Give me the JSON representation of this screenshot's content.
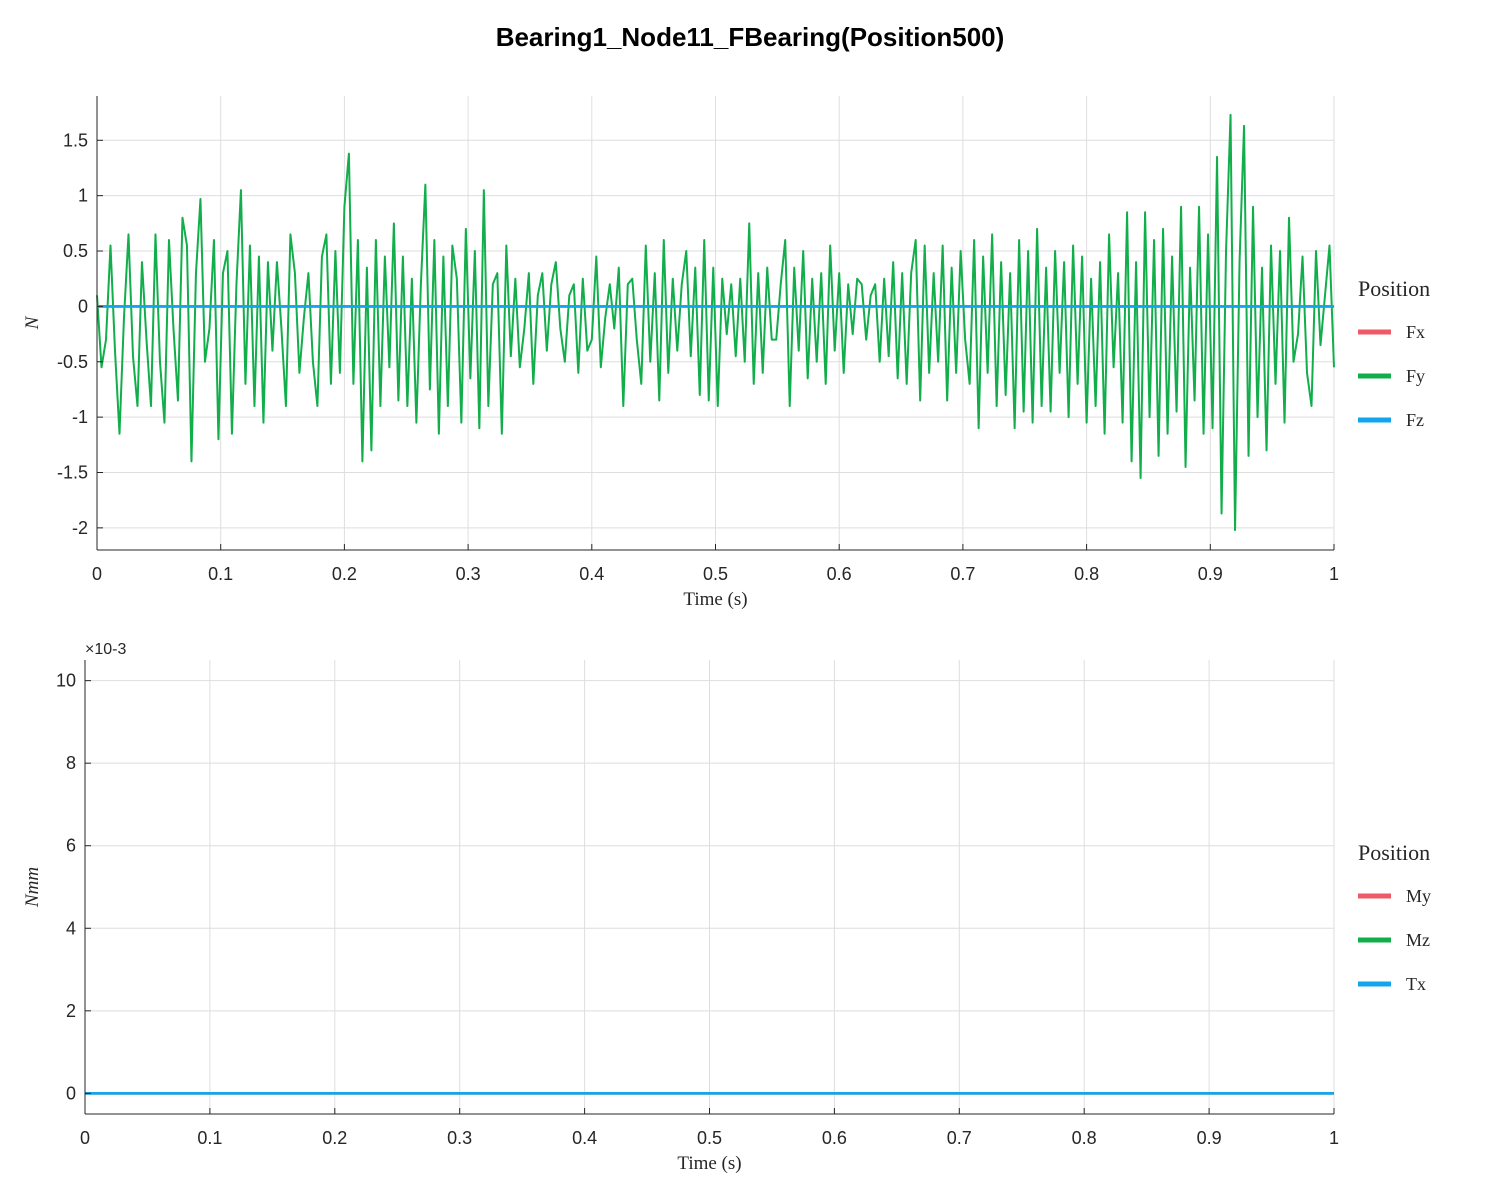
{
  "figure": {
    "title": "Bearing1_Node11_FBearing(Position500)"
  },
  "colors": {
    "series1": "#EE5A66",
    "series2": "#11AE4B",
    "series3": "#12A5EC",
    "grid": "#DEDEDE",
    "axis": "#262626"
  },
  "chart_data": [
    {
      "type": "line",
      "xlabel": "Time (s)",
      "ylabel": "N",
      "xlim": [
        0,
        1
      ],
      "ylim": [
        -2.2,
        1.9
      ],
      "xticks": [
        0,
        0.1,
        0.2,
        0.3,
        0.4,
        0.5,
        0.6,
        0.7,
        0.8,
        0.9,
        1
      ],
      "xtick_labels": [
        "0",
        "0.1",
        "0.2",
        "0.3",
        "0.4",
        "0.5",
        "0.6",
        "0.7",
        "0.8",
        "0.9",
        "1"
      ],
      "yticks": [
        -2,
        -1.5,
        -1,
        -0.5,
        0,
        0.5,
        1,
        1.5
      ],
      "ytick_labels": [
        "-2",
        "-1.5",
        "-1",
        "-0.5",
        "0",
        "0.5",
        "1",
        "1.5"
      ],
      "grid": true,
      "legend_title": "Position",
      "legend_placement": "right",
      "series": [
        {
          "name": "Fx",
          "color": "#EE5A66",
          "kind": "constant",
          "value": 0
        },
        {
          "name": "Fy",
          "color": "#11AE4B",
          "kind": "samples",
          "x_start": 0,
          "x_end": 1,
          "values": [
            0.1,
            -0.55,
            -0.3,
            0.55,
            -0.4,
            -1.15,
            -0.1,
            0.65,
            -0.45,
            -0.9,
            0.4,
            -0.3,
            -0.9,
            0.65,
            -0.5,
            -1.05,
            0.6,
            -0.2,
            -0.85,
            0.8,
            0.55,
            -1.4,
            0.3,
            0.97,
            -0.5,
            -0.2,
            0.6,
            -1.2,
            0.3,
            0.5,
            -1.15,
            0.2,
            1.05,
            -0.7,
            0.55,
            -0.9,
            0.45,
            -1.05,
            0.4,
            -0.4,
            0.4,
            -0.2,
            -0.9,
            0.65,
            0.3,
            -0.6,
            -0.1,
            0.3,
            -0.5,
            -0.9,
            0.45,
            0.65,
            -0.7,
            0.5,
            -0.6,
            0.9,
            1.38,
            -0.7,
            0.6,
            -1.4,
            0.35,
            -1.3,
            0.6,
            -0.9,
            0.45,
            -0.55,
            0.75,
            -0.85,
            0.45,
            -0.9,
            0.25,
            -1.05,
            0.2,
            1.1,
            -0.75,
            0.6,
            -1.15,
            0.45,
            -0.9,
            0.55,
            0.25,
            -1.05,
            0.7,
            -0.65,
            0.5,
            -1.1,
            1.05,
            -0.9,
            0.2,
            0.3,
            -1.15,
            0.55,
            -0.45,
            0.25,
            -0.55,
            -0.2,
            0.3,
            -0.7,
            0.1,
            0.3,
            -0.4,
            0.2,
            0.4,
            -0.2,
            -0.5,
            0.1,
            0.2,
            -0.6,
            0.25,
            -0.4,
            -0.3,
            0.45,
            -0.55,
            -0.1,
            0.2,
            -0.2,
            0.35,
            -0.9,
            0.2,
            0.25,
            -0.3,
            -0.7,
            0.55,
            -0.5,
            0.3,
            -0.85,
            0.6,
            -0.6,
            0.25,
            -0.4,
            0.2,
            0.5,
            -0.45,
            0.35,
            -0.8,
            0.6,
            -0.85,
            0.35,
            -0.9,
            0.25,
            -0.25,
            0.2,
            -0.45,
            0.25,
            -0.5,
            0.75,
            -0.7,
            0.3,
            -0.6,
            0.35,
            -0.3,
            -0.3,
            0.2,
            0.6,
            -0.9,
            0.35,
            -0.4,
            0.5,
            -0.65,
            0.25,
            -0.5,
            0.3,
            -0.7,
            0.55,
            -0.4,
            0.3,
            -0.6,
            0.2,
            -0.25,
            0.25,
            0.2,
            -0.3,
            0.1,
            0.2,
            -0.5,
            0.25,
            -0.45,
            0.4,
            -0.65,
            0.3,
            -0.7,
            0.3,
            0.6,
            -0.85,
            0.55,
            -0.6,
            0.3,
            -0.5,
            0.55,
            -0.85,
            0.35,
            -0.6,
            0.5,
            -0.3,
            -0.7,
            0.6,
            -1.1,
            0.45,
            -0.6,
            0.65,
            -0.9,
            0.4,
            -0.8,
            0.3,
            -1.1,
            0.6,
            -0.95,
            0.5,
            -1.05,
            0.7,
            -0.9,
            0.35,
            -0.95,
            0.5,
            -0.6,
            0.4,
            -1.0,
            0.55,
            -0.7,
            0.45,
            -1.05,
            0.25,
            -0.9,
            0.4,
            -1.15,
            0.65,
            -0.55,
            0.3,
            -1.05,
            0.85,
            -1.4,
            0.4,
            -1.55,
            0.85,
            -1.0,
            0.6,
            -1.35,
            0.7,
            -1.15,
            0.45,
            -0.95,
            0.9,
            -1.45,
            0.35,
            -0.85,
            0.9,
            -1.15,
            0.65,
            -1.1,
            1.35,
            -1.87,
            0.5,
            1.73,
            -2.02,
            0.4,
            1.63,
            -1.35,
            0.9,
            -1.0,
            0.35,
            -1.3,
            0.55,
            -0.7,
            0.5,
            -1.05,
            0.8,
            -0.5,
            -0.25,
            0.45,
            -0.6,
            -0.9,
            0.5,
            -0.35,
            0.1,
            0.55,
            -0.55
          ]
        },
        {
          "name": "Fz",
          "color": "#12A5EC",
          "kind": "constant",
          "value": 0
        }
      ]
    },
    {
      "type": "line",
      "xlabel": "Time (s)",
      "ylabel": "Nmm",
      "y_exponent_label": "×10-3",
      "xlim": [
        0,
        1
      ],
      "ylim": [
        -0.5,
        10.5
      ],
      "xticks": [
        0,
        0.1,
        0.2,
        0.3,
        0.4,
        0.5,
        0.6,
        0.7,
        0.8,
        0.9,
        1
      ],
      "xtick_labels": [
        "0",
        "0.1",
        "0.2",
        "0.3",
        "0.4",
        "0.5",
        "0.6",
        "0.7",
        "0.8",
        "0.9",
        "1"
      ],
      "yticks": [
        0,
        2,
        4,
        6,
        8,
        10
      ],
      "ytick_labels": [
        "0",
        "2",
        "4",
        "6",
        "8",
        "10"
      ],
      "grid": true,
      "legend_title": "Position",
      "legend_placement": "right",
      "series": [
        {
          "name": "My",
          "color": "#EE5A66",
          "kind": "constant",
          "value": 0
        },
        {
          "name": "Mz",
          "color": "#11AE4B",
          "kind": "constant",
          "value": 0
        },
        {
          "name": "Tx",
          "color": "#12A5EC",
          "kind": "constant",
          "value": 0
        }
      ]
    }
  ]
}
